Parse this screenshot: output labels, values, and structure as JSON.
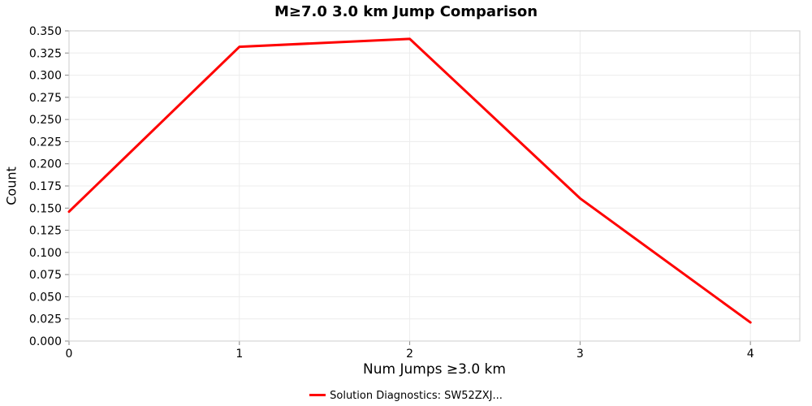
{
  "title": "M≥7.0 3.0 km Jump Comparison",
  "chart_data": {
    "type": "line",
    "title": "M≥7.0 3.0 km Jump Comparison",
    "x": [
      0,
      1,
      2,
      3,
      4
    ],
    "series": [
      {
        "name": "Solution Diagnostics: SW52ZXJ...",
        "values": [
          0.146,
          0.332,
          0.341,
          0.161,
          0.021
        ],
        "color": "#ff0000"
      }
    ],
    "xlabel": "Num Jumps ≥3.0 km",
    "ylabel": "Count",
    "xlim": [
      0,
      4.29
    ],
    "ylim": [
      0.0,
      0.35
    ],
    "ytick_step": 0.025,
    "ytick_decimals": 3,
    "grid": true,
    "legend_position": "bottom",
    "plot_border_color": "#cccccc",
    "grid_color": "#ececec",
    "tick_color": "#888888"
  }
}
